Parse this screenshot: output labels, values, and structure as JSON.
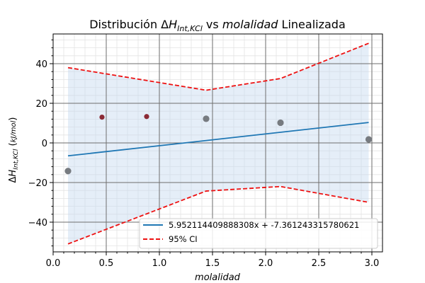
{
  "chart_data": {
    "type": "scatter",
    "title": "Distribución ΔH_Int,KCl vs molalidad Linealizada",
    "xlabel": "molalidad",
    "ylabel": "ΔH_Int,KCl (kJ/mol)",
    "xlim": [
      0.0,
      3.1
    ],
    "ylim": [
      -55,
      55
    ],
    "x_ticks": [
      "0.0",
      "0.5",
      "1.0",
      "1.5",
      "2.0",
      "2.5",
      "3.0"
    ],
    "y_ticks": [
      "−40",
      "−20",
      "0",
      "20",
      "40"
    ],
    "grid": true,
    "legend_position": "lower-right",
    "points_gray": {
      "color": "#777b80",
      "x": [
        0.14,
        1.44,
        2.14,
        2.97
      ],
      "y": [
        -14.2,
        12.2,
        10.2,
        1.8
      ]
    },
    "points_red": {
      "color": "#8b2a35",
      "x": [
        0.46,
        0.88
      ],
      "y": [
        13.0,
        13.3
      ]
    },
    "fit_line": {
      "name": "5.952114409888308x + -7.361243315780621",
      "color": "#1f77b4",
      "slope": 5.952114409888308,
      "intercept": -7.361243315780621,
      "x_range": [
        0.14,
        2.97
      ]
    },
    "ci_upper": {
      "x": [
        0.14,
        1.44,
        2.14,
        2.97
      ],
      "y": [
        38,
        26.6,
        32.5,
        50.3
      ]
    },
    "ci_lower": {
      "x": [
        0.14,
        1.44,
        2.14,
        2.97
      ],
      "y": [
        -51,
        -24.3,
        -22,
        -30
      ]
    },
    "ci": {
      "name": "95% CI",
      "color": "#ee1111",
      "fill_color": "#c6d9ef"
    }
  }
}
